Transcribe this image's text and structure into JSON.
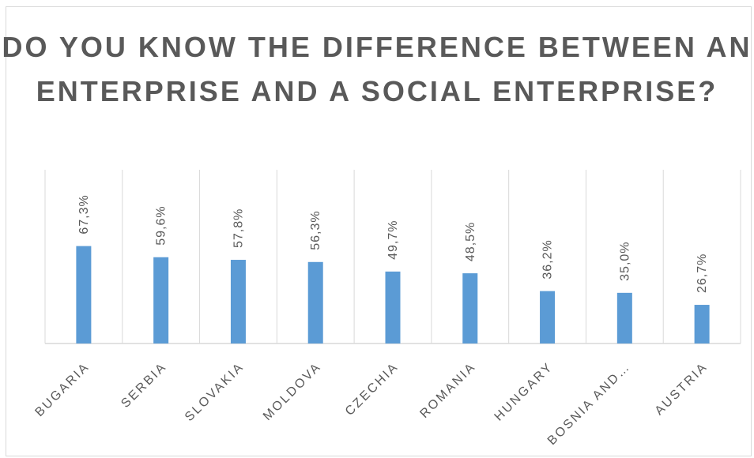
{
  "chart_data": {
    "type": "bar",
    "title": "DO YOU KNOW THE DIFFERENCE BETWEEN AN ENTERPRISE AND A SOCIAL ENTERPRISE?",
    "categories": [
      "BUGARIA",
      "SERBIA",
      "SLOVAKIA",
      "MOLDOVA",
      "CZECHIA",
      "ROMANIA",
      "HUNGARY",
      "BOSNIA AND…",
      "AUSTRIA"
    ],
    "series": [
      {
        "values": [
          67.3,
          59.6,
          57.8,
          56.3,
          49.7,
          48.5,
          36.2,
          35.0,
          26.7
        ]
      }
    ],
    "data_labels": [
      "67,3%",
      "59,6%",
      "57,8%",
      "56,3%",
      "49,7%",
      "48,5%",
      "36,2%",
      "35,0%",
      "26,7%"
    ],
    "xlabel": "",
    "ylabel": "",
    "ylim": [
      0,
      100
    ],
    "grid": "vertical category separators",
    "legend": "none",
    "bar_color": "#5b9bd5",
    "grid_color": "#d9d9d9",
    "text_color": "#595959"
  }
}
